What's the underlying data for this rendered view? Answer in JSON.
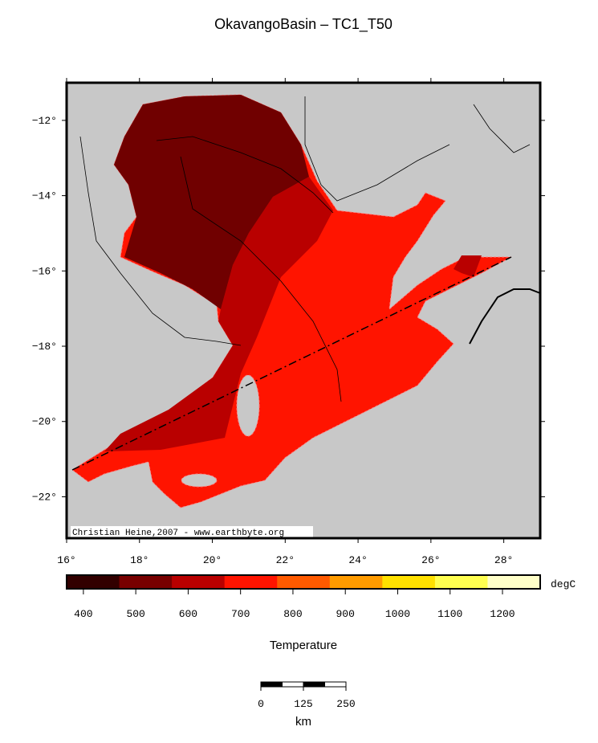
{
  "title": "OkavangoBasin – TC1_T50",
  "map": {
    "lonlim": [
      16,
      29
    ],
    "latlim": [
      -23.1,
      -11
    ],
    "lon_ticks": [
      {
        "value": 16,
        "label": "16°"
      },
      {
        "value": 18,
        "label": "18°"
      },
      {
        "value": 20,
        "label": "20°"
      },
      {
        "value": 22,
        "label": "22°"
      },
      {
        "value": 24,
        "label": "24°"
      },
      {
        "value": 26,
        "label": "26°"
      },
      {
        "value": 28,
        "label": "28°"
      }
    ],
    "lat_ticks": [
      {
        "value": -12,
        "label": "−12°"
      },
      {
        "value": -14,
        "label": "−14°"
      },
      {
        "value": -16,
        "label": "−16°"
      },
      {
        "value": -18,
        "label": "−18°"
      },
      {
        "value": -20,
        "label": "−20°"
      },
      {
        "value": -22,
        "label": "−22°"
      }
    ],
    "credit": "Christian Heine,2007 - www.earthbyte.org"
  },
  "colorbar": {
    "clim": [
      368,
      1272
    ],
    "ticks": [
      400,
      500,
      600,
      700,
      800,
      900,
      1000,
      1100,
      1200
    ],
    "unit": "degC",
    "label": "Temperature",
    "colors": [
      "#320000",
      "#780000",
      "#b90000",
      "#ff1400",
      "#ff5a00",
      "#ff9b00",
      "#ffe100",
      "#ffff50",
      "#ffffc8"
    ]
  },
  "scale": {
    "ticks": [
      0,
      125,
      250
    ],
    "unit": "km"
  }
}
